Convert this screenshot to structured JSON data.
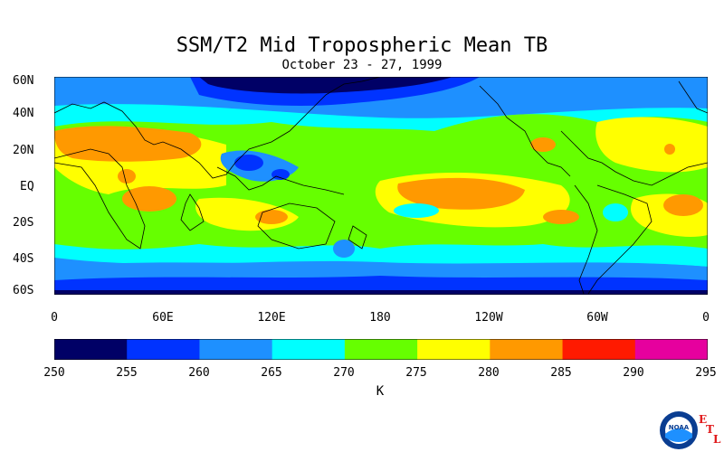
{
  "title": "SSM/T2 Mid Tropospheric Mean TB",
  "subtitle": "October 23 - 27, 1999",
  "lat_labels": [
    "60N",
    "40N",
    "20N",
    "EQ",
    "20S",
    "40S",
    "60S"
  ],
  "lon_labels": [
    "0",
    "60E",
    "120E",
    "180",
    "120W",
    "60W",
    "0"
  ],
  "colorbar": {
    "ticks": [
      "250",
      "255",
      "260",
      "265",
      "270",
      "275",
      "280",
      "285",
      "290",
      "295"
    ],
    "units": "K",
    "colors": [
      "#000066",
      "#0033ff",
      "#1e90ff",
      "#00ffff",
      "#66ff00",
      "#ffff00",
      "#ff9900",
      "#ff1a00",
      "#e6009e"
    ]
  },
  "chart_data": {
    "type": "heatmap",
    "title": "SSM/T2 Mid Tropospheric Mean TB",
    "subtitle": "October 23 - 27, 1999",
    "x_ticks": [
      "0",
      "60E",
      "120E",
      "180",
      "120W",
      "60W",
      "0"
    ],
    "y_ticks": [
      "60N",
      "40N",
      "20N",
      "EQ",
      "20S",
      "40S",
      "60S"
    ],
    "x_range_deg_east": [
      0,
      360
    ],
    "y_range_deg_lat": [
      -60,
      60
    ],
    "value_range": [
      250,
      295
    ],
    "value_unit": "K",
    "contour_interval": 5,
    "levels": [
      250,
      255,
      260,
      265,
      270,
      275,
      280,
      285,
      290,
      295
    ]
  },
  "logo": {
    "agency": "NOAA",
    "lab_letters": [
      "E",
      "T",
      "L"
    ]
  }
}
